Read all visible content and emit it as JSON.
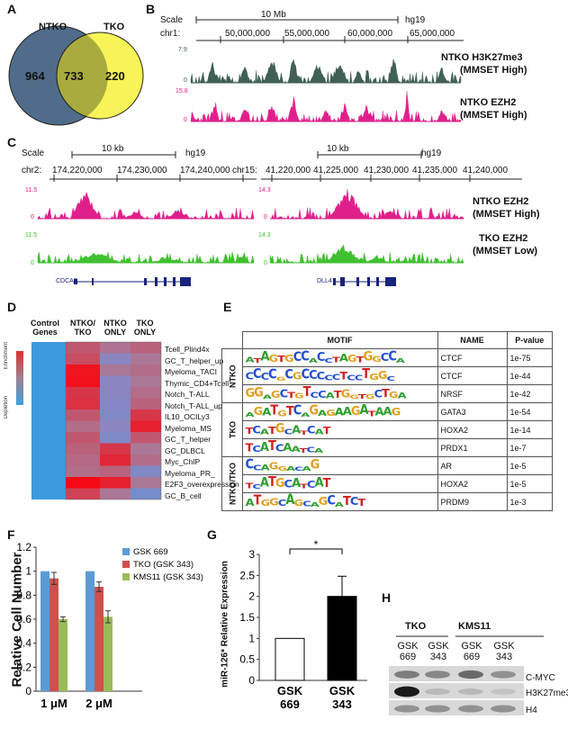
{
  "panels": {
    "A": "A",
    "B": "B",
    "C": "C",
    "D": "D",
    "E": "E",
    "F": "F",
    "G": "G",
    "H": "H"
  },
  "venn": {
    "left_label": "NTKO",
    "right_label": "TKO",
    "left_only": "964",
    "overlap": "733",
    "right_only": "220",
    "colors": {
      "left": "#4f6d8a",
      "right": "#f8f458",
      "overlap": "#a9ab3e"
    }
  },
  "trackB": {
    "scale_label": "Scale",
    "scale_bar_label": "10 Mb",
    "genome": "hg19",
    "chrom": "chr1:",
    "positions": [
      "50,000,000",
      "55,000,000",
      "60,000,000",
      "65,000,000"
    ],
    "tracks": [
      {
        "max": "7.9",
        "min": "0",
        "name": "NTKO H3K27me3",
        "sub": "(MMSET High)",
        "color": "#3f5f57"
      },
      {
        "max": "15.8",
        "min": "0",
        "name": "NTKO EZH2",
        "sub": "(MMSET High)",
        "color": "#e0208a"
      }
    ]
  },
  "trackC": {
    "left": {
      "scale_label": "Scale",
      "scale_bar_label": "10 kb",
      "genome": "hg19",
      "chrom": "chr2:",
      "positions": [
        "174,220,000",
        "174,230,000",
        "174,240,000"
      ],
      "max_top": "11.5",
      "max_bottom": "11.5",
      "gene": "CDCA7"
    },
    "right": {
      "scale_bar_label": "10 kb",
      "genome": "hg19",
      "chrom": "chr15:",
      "positions": [
        "41,220,000",
        "41,225,000",
        "41,230,000",
        "41,235,000",
        "41,240,000"
      ],
      "max_top": "14.3",
      "max_bottom": "14.3",
      "gene": "DLL4"
    },
    "zero": "0",
    "track_names": [
      {
        "name": "NTKO EZH2",
        "sub": "(MMSET High)"
      },
      {
        "name": "TKO EZH2",
        "sub": "(MMSET Low)"
      }
    ],
    "colors": {
      "top": "#e0208a",
      "bottom": "#40c030"
    }
  },
  "heatmap": {
    "columns": [
      "Control Genes",
      "NTKO/ TKO",
      "NTKO ONLY",
      "TKO ONLY"
    ],
    "rows": [
      "Tcell_Plind4x",
      "GC_T_helper_up",
      "Myeloma_TACI",
      "Thymic_CD4+Tcell",
      "Notch_T-ALL",
      "Notch_T-ALL_up",
      "IL10_OCILy3",
      "Myeloma_MS",
      "GC_T_helper",
      "GC_DLBCL",
      "Myc_ChIP",
      "Myeloma_PR_",
      "E2F3_overexpression",
      "GC_B_cell"
    ],
    "values": [
      [
        -0.8,
        0.3,
        0.05,
        0.2
      ],
      [
        -0.8,
        0.4,
        -0.1,
        0.0
      ],
      [
        -0.8,
        0.9,
        0.0,
        0.1
      ],
      [
        -0.8,
        0.95,
        -0.1,
        0.0
      ],
      [
        -0.8,
        0.6,
        -0.1,
        0.1
      ],
      [
        -0.8,
        0.65,
        -0.15,
        0.2
      ],
      [
        -0.8,
        0.3,
        -0.2,
        0.6
      ],
      [
        -0.8,
        0.1,
        -0.1,
        0.8
      ],
      [
        -0.8,
        0.3,
        -0.2,
        0.3
      ],
      [
        -0.8,
        0.2,
        0.6,
        0.0
      ],
      [
        -0.8,
        0.15,
        0.75,
        0.1
      ],
      [
        -0.8,
        0.1,
        0.2,
        -0.2
      ],
      [
        -0.8,
        1.0,
        0.8,
        0.0
      ],
      [
        -0.8,
        0.5,
        0.0,
        -0.3
      ]
    ],
    "scale_top": "Enrichment",
    "scale_bottom": "Depletion"
  },
  "motifs": {
    "headers": [
      "MOTIF",
      "NAME",
      "P-value"
    ],
    "groups": [
      {
        "label": "NTKO",
        "rows": [
          {
            "motif": "ATAGTGCCACCTAGTGGCCA",
            "name": "CTCF",
            "p": "1e-75"
          },
          {
            "motif": "CCCCGCGCCCCCTCCTGGC",
            "name": "CTCF",
            "p": "1e-44"
          },
          {
            "motif": "GGAGCTGTCCATGGTGCTGA",
            "name": "NRSF",
            "p": "1e-42"
          }
        ]
      },
      {
        "label": "TKO",
        "rows": [
          {
            "motif": "AGATGTCAGAGAAGATAAG",
            "name": "GATA3",
            "p": "1e-54"
          },
          {
            "motif": "TCATGCATCAT",
            "name": "HOXA2",
            "p": "1e-14"
          },
          {
            "motif": "TCATCAATCA",
            "name": "PRDX1",
            "p": "1e-7"
          }
        ]
      },
      {
        "label": "NTKO/TKO",
        "rows": [
          {
            "motif": "CCAGGACAG",
            "name": "AR",
            "p": "1e-5"
          },
          {
            "motif": "TCATGCATCAT",
            "name": "HOXA2",
            "p": "1e-5"
          },
          {
            "motif": "ATGGCAGCAGCATCT",
            "name": "PRDM9",
            "p": "1e-3"
          }
        ]
      }
    ]
  },
  "chart_data": [
    {
      "type": "bar",
      "ylabel": "Relative Cell Number",
      "categories": [
        "1 μM",
        "2 μM"
      ],
      "ylim": [
        0,
        1.2
      ],
      "yticks": [
        "0",
        "0.2",
        "0.4",
        "0.6",
        "0.8",
        "1",
        "1.2"
      ],
      "series": [
        {
          "name": "GSK 669",
          "values": [
            1.0,
            1.0
          ],
          "errors": [
            0,
            0
          ],
          "color": "#5b9bd5"
        },
        {
          "name": "TKO (GSK 343)",
          "values": [
            0.94,
            0.87
          ],
          "errors": [
            0.05,
            0.04
          ],
          "color": "#d0504c"
        },
        {
          "name": "KMS11 (GSK 343)",
          "values": [
            0.6,
            0.62
          ],
          "errors": [
            0.02,
            0.05
          ],
          "color": "#9bbb59"
        }
      ],
      "legend": "top-right"
    },
    {
      "type": "bar",
      "ylabel": "miR-126* Relative Expression",
      "categories": [
        "GSK 669",
        "GSK 343"
      ],
      "ylim": [
        0,
        3
      ],
      "yticks": [
        "0",
        "0.5",
        "1",
        "1.5",
        "2",
        "2.5",
        "3"
      ],
      "values": [
        1.0,
        2.0
      ],
      "errors": [
        0,
        0.48
      ],
      "fills": [
        "#ffffff",
        "#000000"
      ],
      "annotation": "*"
    }
  ],
  "blot": {
    "groups": [
      "TKO",
      "KMS11"
    ],
    "lanes": [
      "GSK 669",
      "GSK 343",
      "GSK 669",
      "GSK 343"
    ],
    "bands": [
      {
        "label": "C-MYC",
        "intensity": [
          0.45,
          0.4,
          0.55,
          0.35
        ]
      },
      {
        "label": "H3K27me3",
        "intensity": [
          0.95,
          0.15,
          0.15,
          0.1
        ]
      },
      {
        "label": "H4",
        "intensity": [
          0.35,
          0.35,
          0.35,
          0.35
        ]
      }
    ]
  }
}
